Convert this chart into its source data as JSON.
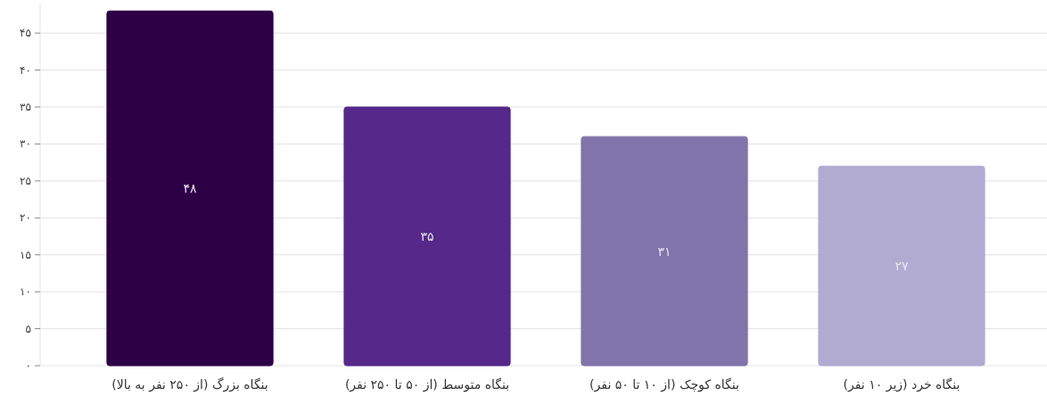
{
  "chart_data": {
    "type": "bar",
    "categories": [
      "بنگاه بزرگ (از ۲۵۰ نفر به بالا)",
      "بنگاه متوسط (از ۵۰ تا ۲۵۰ نفر)",
      "بنگاه کوچک (از ۱۰ تا ۵۰ نفر)",
      "بنگاه خرد (زیر ۱۰ نفر)"
    ],
    "values": [
      48,
      35,
      31,
      27
    ],
    "value_labels": [
      "۴۸",
      "۳۵",
      "۳۱",
      "۲۷"
    ],
    "colors": [
      "#2d0046",
      "#55288a",
      "#8074aa",
      "#b1abd2"
    ],
    "ylim": [
      0,
      49
    ],
    "yticks": [
      {
        "value": 0,
        "label": "۰"
      },
      {
        "value": 5,
        "label": "۵"
      },
      {
        "value": 10,
        "label": "۱۰"
      },
      {
        "value": 15,
        "label": "۱۵"
      },
      {
        "value": 20,
        "label": "۲۰"
      },
      {
        "value": 25,
        "label": "۲۵"
      },
      {
        "value": 30,
        "label": "۳۰"
      },
      {
        "value": 35,
        "label": "۳۵"
      },
      {
        "value": 40,
        "label": "۴۰"
      },
      {
        "value": 45,
        "label": "۴۵"
      }
    ],
    "grid": "y"
  }
}
